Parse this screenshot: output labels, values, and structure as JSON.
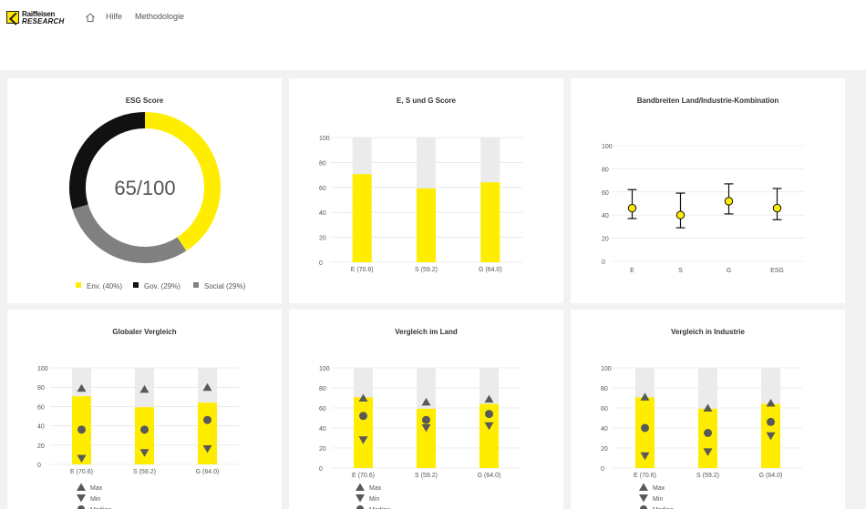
{
  "header": {
    "logo": {
      "line1": "Raiffeisen",
      "line2": "RESEARCH"
    },
    "nav": {
      "help": "Hilfe",
      "methodology": "Methodologie"
    }
  },
  "colors": {
    "yellow": "#ffed00",
    "black": "#111111",
    "gray": "#808080",
    "track": "#ebebeb",
    "marker": "#595959"
  },
  "cards": {
    "esg_score": {
      "title": "ESG Score",
      "center_text": "65/100",
      "legend": [
        "Env. (40%)",
        "Gov. (29%)",
        "Social (29%)"
      ]
    },
    "esg_bars": {
      "title": "E, S und G Score"
    },
    "bandwidth": {
      "title": "Bandbreiten Land/Industrie-Kombination"
    },
    "global": {
      "title": "Globaler Vergleich"
    },
    "country": {
      "title": "Vergleich im Land"
    },
    "industry": {
      "title": "Vergleich in Industrie"
    }
  },
  "legend_markers": [
    "Max",
    "Min",
    "Median"
  ],
  "chart_data": [
    {
      "type": "pie",
      "title": "ESG Score",
      "center_label": "65/100",
      "slices": [
        {
          "name": "Env. (40%)",
          "value": 40,
          "color": "#ffed00"
        },
        {
          "name": "Social (29%)",
          "value": 29,
          "color": "#808080"
        },
        {
          "name": "Gov. (29%)",
          "value": 29,
          "color": "#111111"
        }
      ]
    },
    {
      "type": "bar",
      "title": "E, S und G Score",
      "categories": [
        "E (70.6)",
        "S (59.2)",
        "G (64.0)"
      ],
      "values": [
        70.6,
        59.2,
        64.0
      ],
      "yticks": [
        0,
        20,
        40,
        60,
        80,
        100
      ],
      "ylim": [
        0,
        100
      ]
    },
    {
      "type": "scatter",
      "title": "Bandbreiten Land/Industrie-Kombination",
      "categories": [
        "E",
        "S",
        "G",
        "ESG"
      ],
      "values": [
        46,
        40,
        52,
        46
      ],
      "low": [
        37,
        29,
        41,
        36
      ],
      "high": [
        62,
        59,
        67,
        63
      ],
      "yticks": [
        0,
        20,
        40,
        60,
        80,
        100
      ],
      "ylim": [
        0,
        100
      ]
    },
    {
      "type": "bar",
      "title": "Globaler Vergleich",
      "categories": [
        "E (70.6)",
        "S (59.2)",
        "G (64.0)"
      ],
      "values": [
        70.6,
        59.2,
        64.0
      ],
      "max": [
        79,
        78,
        80
      ],
      "min": [
        6,
        12,
        16
      ],
      "median": [
        36,
        36,
        46
      ],
      "yticks": [
        0,
        20,
        40,
        60,
        80,
        100
      ],
      "ylim": [
        0,
        100
      ]
    },
    {
      "type": "bar",
      "title": "Vergleich im Land",
      "categories": [
        "E (70.6)",
        "S (59.2)",
        "G (64.0)"
      ],
      "values": [
        70.6,
        59.2,
        64.0
      ],
      "max": [
        70,
        66,
        69
      ],
      "min": [
        28,
        40,
        42
      ],
      "median": [
        52,
        48,
        54
      ],
      "yticks": [
        0,
        20,
        40,
        60,
        80,
        100
      ],
      "ylim": [
        0,
        100
      ]
    },
    {
      "type": "bar",
      "title": "Vergleich in Industrie",
      "categories": [
        "E (70.6)",
        "S (59.2)",
        "G (64.0)"
      ],
      "values": [
        70.6,
        59.2,
        64.0
      ],
      "max": [
        71,
        60,
        65
      ],
      "min": [
        12,
        16,
        32
      ],
      "median": [
        40,
        35,
        46
      ],
      "yticks": [
        0,
        20,
        40,
        60,
        80,
        100
      ],
      "ylim": [
        0,
        100
      ]
    }
  ]
}
